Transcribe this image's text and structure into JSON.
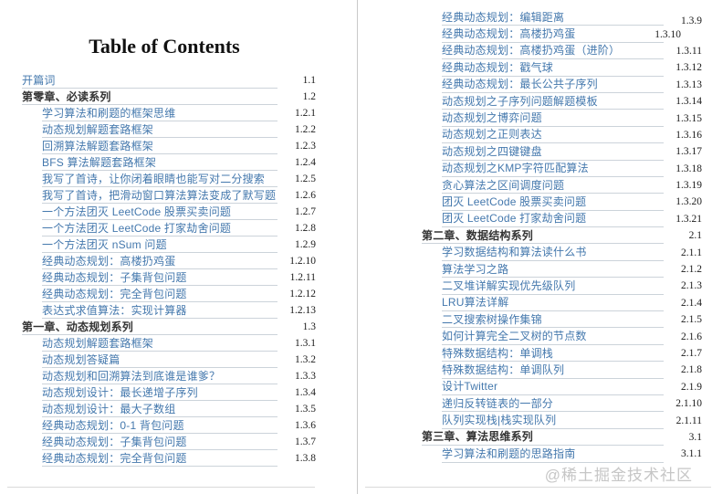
{
  "title": "Table of Contents",
  "watermark": "@稀土掘金技术社区",
  "colors": {
    "link_text": "#4478ad",
    "chapter_text": "#333333",
    "number_text": "#1c1c1c",
    "leader_line": "#ccd3da",
    "page_divider": "#c9c9c9",
    "watermark_text": "#c6c6c6"
  },
  "left_page": {
    "entries": [
      {
        "label": "开篇词",
        "num": "1.1",
        "type": "link",
        "indent": 0
      },
      {
        "label": "第零章、必读系列",
        "num": "1.2",
        "type": "chapter",
        "indent": 0
      },
      {
        "label": "学习算法和刷题的框架思维",
        "num": "1.2.1",
        "type": "link",
        "indent": 1
      },
      {
        "label": "动态规划解题套路框架",
        "num": "1.2.2",
        "type": "link",
        "indent": 1
      },
      {
        "label": "回溯算法解题套路框架",
        "num": "1.2.3",
        "type": "link",
        "indent": 1
      },
      {
        "label": "BFS 算法解题套路框架",
        "num": "1.2.4",
        "type": "link",
        "indent": 1
      },
      {
        "label": "我写了首诗，让你闭着眼睛也能写对二分搜索",
        "num": "1.2.5",
        "type": "link",
        "indent": 1
      },
      {
        "label": "我写了首诗，把滑动窗口算法算法变成了默写题",
        "num": "1.2.6",
        "type": "link",
        "indent": 1
      },
      {
        "label": "一个方法团灭 LeetCode 股票买卖问题",
        "num": "1.2.7",
        "type": "link",
        "indent": 1
      },
      {
        "label": "一个方法团灭 LeetCode 打家劫舍问题",
        "num": "1.2.8",
        "type": "link",
        "indent": 1
      },
      {
        "label": "一个方法团灭 nSum 问题",
        "num": "1.2.9",
        "type": "link",
        "indent": 1
      },
      {
        "label": "经典动态规划：高楼扔鸡蛋",
        "num": "1.2.10",
        "type": "link",
        "indent": 1
      },
      {
        "label": "经典动态规划：子集背包问题",
        "num": "1.2.11",
        "type": "link",
        "indent": 1
      },
      {
        "label": "经典动态规划：完全背包问题",
        "num": "1.2.12",
        "type": "link",
        "indent": 1
      },
      {
        "label": "表达式求值算法：实现计算器",
        "num": "1.2.13",
        "type": "link",
        "indent": 1
      },
      {
        "label": "第一章、动态规划系列",
        "num": "1.3",
        "type": "chapter",
        "indent": 0
      },
      {
        "label": "动态规划解题套路框架",
        "num": "1.3.1",
        "type": "link",
        "indent": 1
      },
      {
        "label": "动态规划答疑篇",
        "num": "1.3.2",
        "type": "link",
        "indent": 1
      },
      {
        "label": "动态规划和回溯算法到底谁是谁爹？",
        "num": "1.3.3",
        "type": "link",
        "indent": 1
      },
      {
        "label": "动态规划设计：最长递增子序列",
        "num": "1.3.4",
        "type": "link",
        "indent": 1
      },
      {
        "label": "动态规划设计：最大子数组",
        "num": "1.3.5",
        "type": "link",
        "indent": 1
      },
      {
        "label": "经典动态规划：0-1 背包问题",
        "num": "1.3.6",
        "type": "link",
        "indent": 1
      },
      {
        "label": "经典动态规划：子集背包问题",
        "num": "1.3.7",
        "type": "link",
        "indent": 1
      },
      {
        "label": "经典动态规划：完全背包问题",
        "num": "1.3.8",
        "type": "link",
        "indent": 1
      }
    ]
  },
  "right_page": {
    "entries": [
      {
        "label": "经典动态规划：编辑距离",
        "num": "1.3.9",
        "type": "link",
        "indent": 1,
        "num_shift": [
          0,
          4
        ]
      },
      {
        "label": "经典动态规划：高楼扔鸡蛋",
        "num": "1.3.10",
        "type": "link",
        "indent": 1,
        "num_shift": [
          -23,
          0
        ]
      },
      {
        "label": "经典动态规划：高楼扔鸡蛋（进阶）",
        "num": "1.3.11",
        "type": "link",
        "indent": 1
      },
      {
        "label": "经典动态规划：戳气球",
        "num": "1.3.12",
        "type": "link",
        "indent": 1
      },
      {
        "label": "经典动态规划：最长公共子序列",
        "num": "1.3.13",
        "type": "link",
        "indent": 1
      },
      {
        "label": "动态规划之子序列问题解题模板",
        "num": "1.3.14",
        "type": "link",
        "indent": 1
      },
      {
        "label": "动态规划之博弈问题",
        "num": "1.3.15",
        "type": "link",
        "indent": 1
      },
      {
        "label": "动态规划之正则表达",
        "num": "1.3.16",
        "type": "link",
        "indent": 1
      },
      {
        "label": "动态规划之四键键盘",
        "num": "1.3.17",
        "type": "link",
        "indent": 1
      },
      {
        "label": "动态规划之KMP字符匹配算法",
        "num": "1.3.18",
        "type": "link",
        "indent": 1
      },
      {
        "label": "贪心算法之区间调度问题",
        "num": "1.3.19",
        "type": "link",
        "indent": 1
      },
      {
        "label": "团灭 LeetCode 股票买卖问题",
        "num": "1.3.20",
        "type": "link",
        "indent": 1
      },
      {
        "label": "团灭 LeetCode 打家劫舍问题",
        "num": "1.3.21",
        "type": "link",
        "indent": 1
      },
      {
        "label": "第二章、数据结构系列",
        "num": "2.1",
        "type": "chapter",
        "indent": 0
      },
      {
        "label": "学习数据结构和算法读什么书",
        "num": "2.1.1",
        "type": "link",
        "indent": 1
      },
      {
        "label": "算法学习之路",
        "num": "2.1.2",
        "type": "link",
        "indent": 1
      },
      {
        "label": "二叉堆详解实现优先级队列",
        "num": "2.1.3",
        "type": "link",
        "indent": 1
      },
      {
        "label": "LRU算法详解",
        "num": "2.1.4",
        "type": "link",
        "indent": 1
      },
      {
        "label": "二叉搜索树操作集锦",
        "num": "2.1.5",
        "type": "link",
        "indent": 1
      },
      {
        "label": "如何计算完全二叉树的节点数",
        "num": "2.1.6",
        "type": "link",
        "indent": 1
      },
      {
        "label": "特殊数据结构：单调栈",
        "num": "2.1.7",
        "type": "link",
        "indent": 1
      },
      {
        "label": "特殊数据结构：单调队列",
        "num": "2.1.8",
        "type": "link",
        "indent": 1
      },
      {
        "label": "设计Twitter",
        "num": "2.1.9",
        "type": "link",
        "indent": 1
      },
      {
        "label": "递归反转链表的一部分",
        "num": "2.1.10",
        "type": "link",
        "indent": 1
      },
      {
        "label": "队列实现栈|栈实现队列",
        "num": "2.1.11",
        "type": "link",
        "indent": 1
      },
      {
        "label": "第三章、算法思维系列",
        "num": "3.1",
        "type": "chapter",
        "indent": 0
      },
      {
        "label": "学习算法和刷题的思路指南",
        "num": "3.1.1",
        "type": "link",
        "indent": 1
      }
    ]
  }
}
